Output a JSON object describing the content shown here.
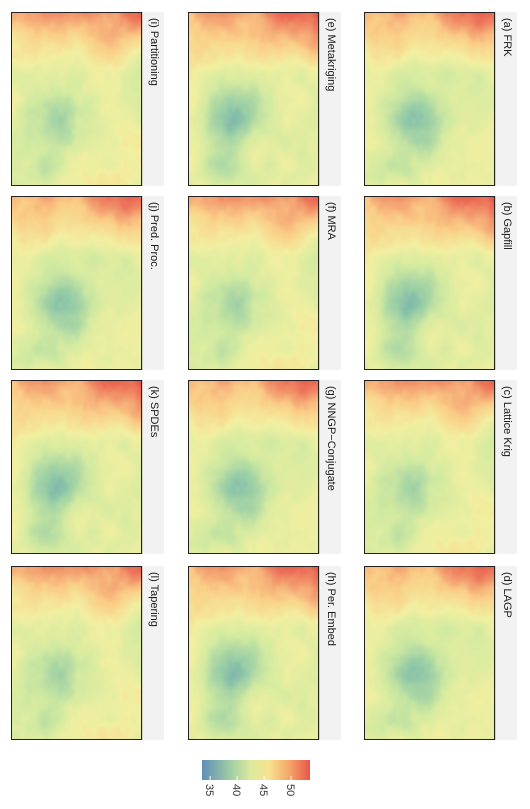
{
  "chart_data": [
    {
      "type": "heatmap",
      "title": "(a) FRK"
    },
    {
      "type": "heatmap",
      "title": "(b) Gapfill"
    },
    {
      "type": "heatmap",
      "title": "(c) Lattice Krig"
    },
    {
      "type": "heatmap",
      "title": "(d) LAGP"
    },
    {
      "type": "heatmap",
      "title": "(e) Metakriging"
    },
    {
      "type": "heatmap",
      "title": "(f) MRA"
    },
    {
      "type": "heatmap",
      "title": "(g) NNGP−Conjugate"
    },
    {
      "type": "heatmap",
      "title": "(h) Per. Embed"
    },
    {
      "type": "heatmap",
      "title": "(i) Partitioning"
    },
    {
      "type": "heatmap",
      "title": "(j) Pred. Proc."
    },
    {
      "type": "heatmap",
      "title": "(k) SPDEs"
    },
    {
      "type": "heatmap",
      "title": "(l) Tapering"
    }
  ],
  "colorbar": {
    "ticks": [
      "35",
      "40",
      "45",
      "50"
    ],
    "tick_values": [
      35,
      40,
      45,
      50
    ],
    "range": [
      33.5,
      53.5
    ],
    "colors": [
      "#5e8fb8",
      "#9ccba4",
      "#dcea9e",
      "#f7e28f",
      "#f6a86a",
      "#e8564a"
    ]
  },
  "palette": {
    "low": "#4f8db8",
    "mid_low": "#9fd0a2",
    "mid": "#eef0a0",
    "mid_high": "#f9c982",
    "high": "#e8564a"
  }
}
